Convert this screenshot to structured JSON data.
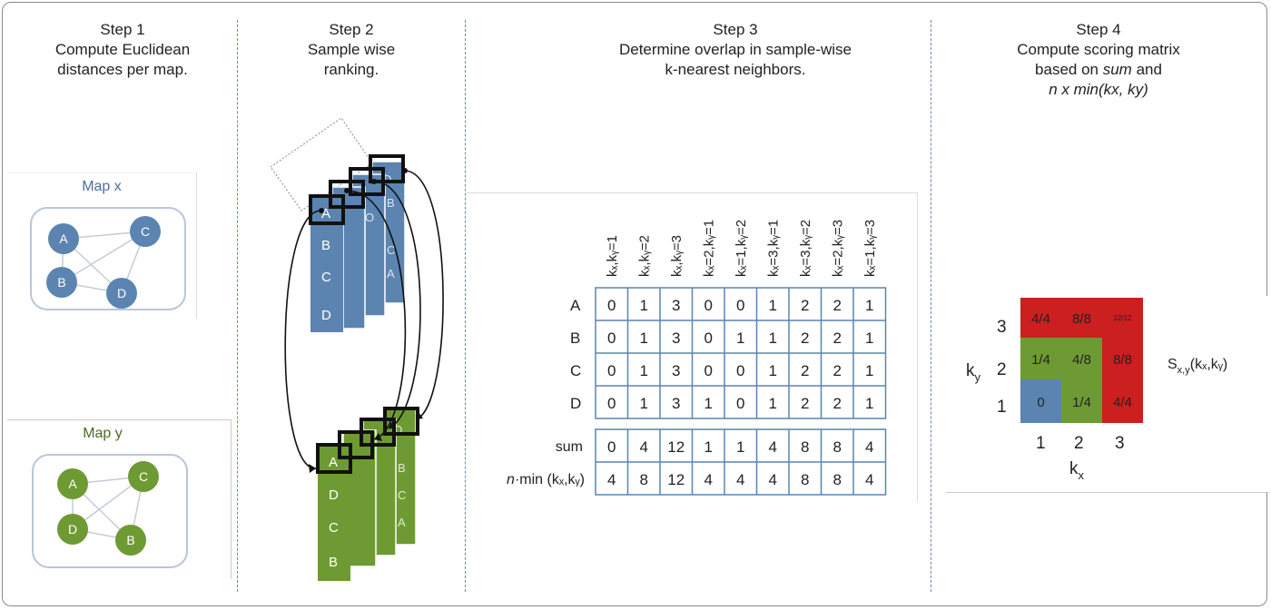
{
  "steps": [
    {
      "label": "Step 1",
      "lines": [
        "Compute Euclidean",
        "distances per map."
      ]
    },
    {
      "label": "Step 2",
      "lines": [
        "Sample wise",
        "ranking."
      ]
    },
    {
      "label": "Step 3",
      "lines": [
        "Determine overlap in sample-wise",
        "k-nearest neighbors."
      ]
    },
    {
      "label": "Step 4",
      "lines": [
        "Compute scoring matrix",
        "based on",
        "sum",
        "and",
        "n x min(kx, ky)"
      ]
    }
  ],
  "maps": [
    {
      "title": "Map x",
      "nodes": [
        "A",
        "C",
        "B",
        "D"
      ],
      "color": "#5b84b1"
    },
    {
      "title": "Map y",
      "nodes": [
        "A",
        "C",
        "D",
        "B"
      ],
      "color": "#6e9a33"
    }
  ],
  "rank_stack_blue": {
    "column": [
      "A",
      "B",
      "C",
      "D"
    ],
    "back_letters": [
      "D",
      "O",
      "B",
      "C",
      "A"
    ]
  },
  "rank_stack_green": {
    "column": [
      "A",
      "D",
      "C",
      "B"
    ],
    "back_letters": [
      "D",
      "B",
      "C",
      "A"
    ]
  },
  "table": {
    "col_headers": [
      "kₓ,kᵧ=1",
      "kₓ,kᵧ=2",
      "kₓ,kᵧ=3",
      "kₓ=2,kᵧ=1",
      "kₓ=1,kᵧ=2",
      "kₓ=3,kᵧ=1",
      "kₓ=3,kᵧ=2",
      "kₓ=2,kᵧ=3",
      "kₓ=1,kᵧ=3"
    ],
    "row_labels": [
      "A",
      "B",
      "C",
      "D"
    ],
    "rows": [
      [
        "0",
        "1",
        "3",
        "0",
        "0",
        "1",
        "2",
        "2",
        "1"
      ],
      [
        "0",
        "1",
        "3",
        "0",
        "1",
        "1",
        "2",
        "2",
        "1"
      ],
      [
        "0",
        "1",
        "3",
        "0",
        "0",
        "1",
        "2",
        "2",
        "1"
      ],
      [
        "0",
        "1",
        "3",
        "1",
        "0",
        "1",
        "2",
        "2",
        "1"
      ]
    ],
    "sum_label": "sum",
    "sum_row": [
      "0",
      "4",
      "12",
      "1",
      "1",
      "4",
      "8",
      "8",
      "4"
    ],
    "min_label_prefix": "n",
    "min_label_rest": "·min (kₓ,kᵧ)",
    "min_row": [
      "4",
      "8",
      "12",
      "4",
      "4",
      "4",
      "8",
      "8",
      "4"
    ]
  },
  "matrix": {
    "row_labels": [
      "3",
      "2",
      "1"
    ],
    "col_labels": [
      "1",
      "2",
      "3"
    ],
    "cells": [
      [
        {
          "t": "4/4",
          "c": "#cc1f1f"
        },
        {
          "t": "8/8",
          "c": "#cc1f1f"
        },
        {
          "t": "12/12",
          "c": "#cc1f1f"
        }
      ],
      [
        {
          "t": "1/4",
          "c": "#6e9a33"
        },
        {
          "t": "4/8",
          "c": "#6e9a33"
        },
        {
          "t": "8/8",
          "c": "#cc1f1f"
        }
      ],
      [
        {
          "t": "0",
          "c": "#5b84b1"
        },
        {
          "t": "1/4",
          "c": "#6e9a33"
        },
        {
          "t": "4/4",
          "c": "#cc1f1f"
        }
      ]
    ],
    "ky_label": "k",
    "ky_sub": "y",
    "kx_label": "k",
    "kx_sub": "x",
    "score_label": "S",
    "score_sub": "x,y",
    "score_args": "(kₓ,kᵧ)"
  },
  "colors": {
    "blue": "#5b84b1",
    "green": "#6e9a33",
    "red": "#cc1f1f",
    "divider": "#6a86b8"
  }
}
